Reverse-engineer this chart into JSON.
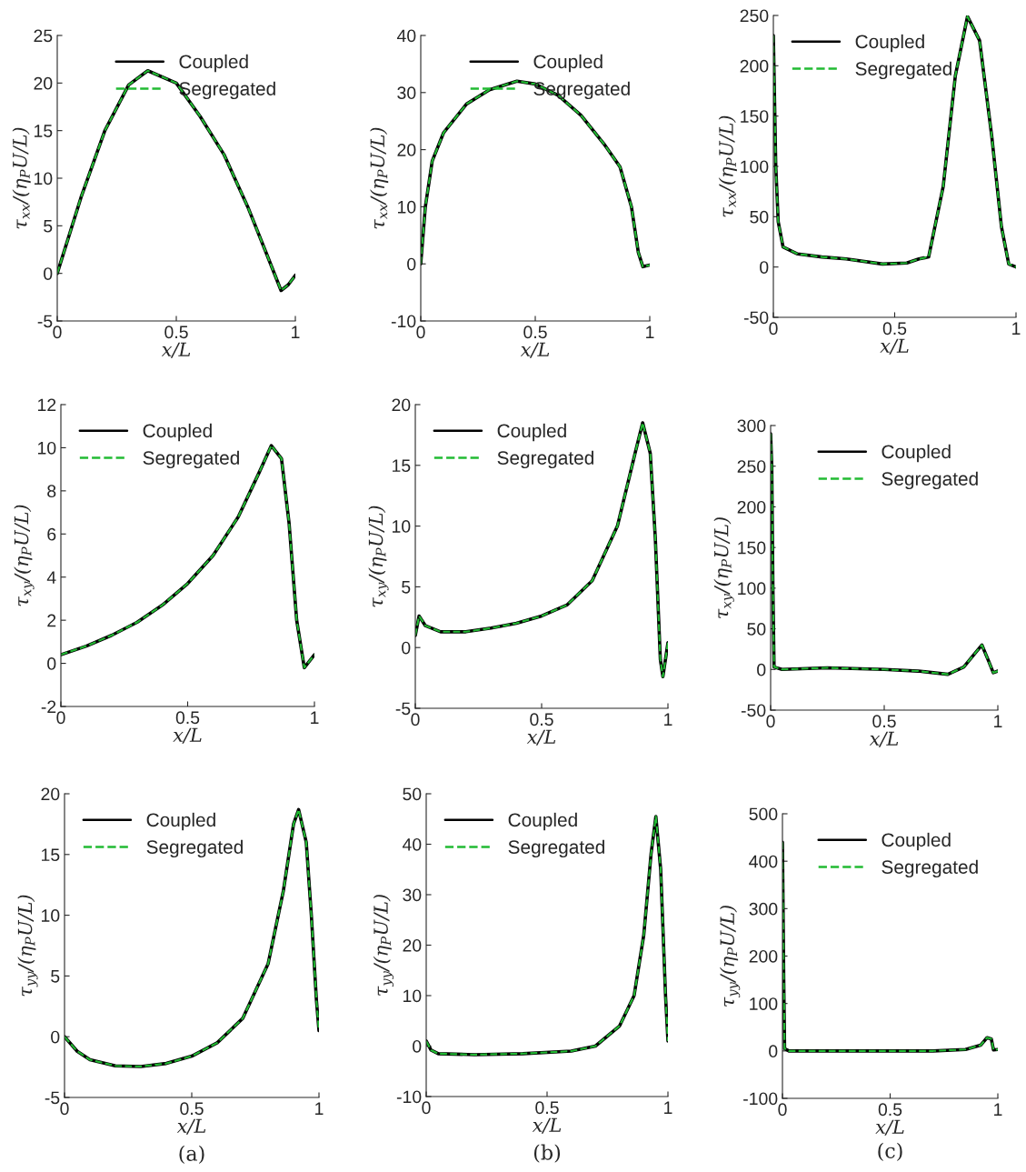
{
  "chart_data": [
    {
      "type": "line",
      "xlabel": "x/L",
      "ylabel": "τ$_{xx}$/(η$_{P}$U/L)",
      "x": [
        0,
        0.1,
        0.2,
        0.3,
        0.38,
        0.5,
        0.6,
        0.7,
        0.8,
        0.88,
        0.94,
        0.97,
        1.0
      ],
      "xlim": [
        0,
        1
      ],
      "xticks": [
        0,
        0.5,
        1
      ],
      "ylim": [
        -5,
        25
      ],
      "yticks": [
        -5,
        0,
        5,
        10,
        15,
        20,
        25
      ],
      "legend": "top right",
      "series": [
        {
          "name": "Coupled",
          "color": "#000000",
          "line_style": "solid",
          "values": [
            0,
            8,
            15,
            19.8,
            21.3,
            20,
            16.5,
            12.5,
            7,
            2,
            -1.8,
            -1.2,
            -0.2
          ]
        },
        {
          "name": "Segregated",
          "color": "#22bb33",
          "line_style": "dashed",
          "values": [
            0,
            8,
            15,
            19.8,
            21.3,
            20,
            16.5,
            12.5,
            7,
            2,
            -1.8,
            -1.2,
            -0.2
          ]
        }
      ]
    },
    {
      "type": "line",
      "xlabel": "x/L",
      "ylabel": "τ$_{xx}$/(η$_{P}$U/L)",
      "x": [
        0,
        0.02,
        0.05,
        0.1,
        0.2,
        0.3,
        0.42,
        0.5,
        0.6,
        0.7,
        0.8,
        0.87,
        0.92,
        0.95,
        0.97,
        1.0
      ],
      "xlim": [
        0,
        1
      ],
      "xticks": [
        0,
        0.5,
        1
      ],
      "ylim": [
        -10,
        40
      ],
      "yticks": [
        -10,
        0,
        10,
        20,
        30,
        40
      ],
      "legend": "top right",
      "series": [
        {
          "name": "Coupled",
          "color": "#000000",
          "line_style": "solid",
          "values": [
            0,
            10,
            18,
            23,
            28,
            30.5,
            32,
            31.5,
            29.5,
            26,
            21,
            17,
            10,
            2,
            -0.5,
            -0.2
          ]
        },
        {
          "name": "Segregated",
          "color": "#22bb33",
          "line_style": "dashed",
          "values": [
            0,
            10,
            18,
            23,
            28,
            30.5,
            32,
            31.5,
            29.5,
            26,
            21,
            17,
            10,
            2,
            -0.5,
            -0.2
          ]
        }
      ]
    },
    {
      "type": "line",
      "xlabel": "x/L",
      "ylabel": "τ$_{xx}$/(η$_{P}$U/L)",
      "x": [
        0,
        0.01,
        0.02,
        0.04,
        0.1,
        0.2,
        0.3,
        0.45,
        0.55,
        0.6,
        0.64,
        0.7,
        0.75,
        0.8,
        0.85,
        0.9,
        0.94,
        0.97,
        1.0
      ],
      "xlim": [
        0,
        1
      ],
      "xticks": [
        0,
        0.5,
        1
      ],
      "ylim": [
        -50,
        250
      ],
      "yticks": [
        -50,
        0,
        50,
        100,
        150,
        200,
        250
      ],
      "legend": "top left",
      "series": [
        {
          "name": "Coupled",
          "color": "#000000",
          "line_style": "solid",
          "values": [
            230,
            100,
            45,
            20,
            13,
            10,
            8,
            3,
            4,
            8,
            10,
            80,
            190,
            249,
            225,
            130,
            40,
            3,
            0
          ]
        },
        {
          "name": "Segregated",
          "color": "#22bb33",
          "line_style": "dashed",
          "values": [
            230,
            100,
            45,
            20,
            13,
            10,
            8,
            3,
            4,
            8,
            10,
            80,
            190,
            249,
            225,
            130,
            40,
            3,
            0
          ]
        }
      ]
    },
    {
      "type": "line",
      "xlabel": "x/L",
      "ylabel": "τ$_{xy}$/(η$_{P}$U/L)",
      "x": [
        0,
        0.1,
        0.2,
        0.3,
        0.4,
        0.5,
        0.6,
        0.7,
        0.78,
        0.83,
        0.87,
        0.9,
        0.93,
        0.96,
        1.0
      ],
      "xlim": [
        0,
        1
      ],
      "xticks": [
        0,
        0.5,
        1
      ],
      "ylim": [
        -2,
        12
      ],
      "yticks": [
        -2,
        0,
        2,
        4,
        6,
        8,
        10,
        12
      ],
      "legend": "top left",
      "series": [
        {
          "name": "Coupled",
          "color": "#000000",
          "line_style": "solid",
          "values": [
            0.4,
            0.8,
            1.3,
            1.9,
            2.7,
            3.7,
            5.0,
            6.8,
            8.8,
            10.1,
            9.5,
            6.5,
            2,
            -0.2,
            0.4
          ]
        },
        {
          "name": "Segregated",
          "color": "#22bb33",
          "line_style": "dashed",
          "values": [
            0.4,
            0.8,
            1.3,
            1.9,
            2.7,
            3.7,
            5.0,
            6.8,
            8.8,
            10.1,
            9.5,
            6.5,
            2,
            -0.2,
            0.4
          ]
        }
      ]
    },
    {
      "type": "line",
      "xlabel": "x/L",
      "ylabel": "τ$_{xy}$/(η$_{P}$U/L)",
      "x": [
        0,
        0.015,
        0.04,
        0.1,
        0.2,
        0.3,
        0.4,
        0.5,
        0.6,
        0.7,
        0.8,
        0.87,
        0.9,
        0.93,
        0.95,
        0.97,
        0.98,
        1.0
      ],
      "xlim": [
        0,
        1
      ],
      "xticks": [
        0,
        0.5,
        1
      ],
      "ylim": [
        -5,
        20
      ],
      "yticks": [
        -5,
        0,
        5,
        10,
        15,
        20
      ],
      "legend": "top left",
      "series": [
        {
          "name": "Coupled",
          "color": "#000000",
          "line_style": "solid",
          "values": [
            1,
            2.6,
            1.8,
            1.3,
            1.3,
            1.6,
            2.0,
            2.6,
            3.5,
            5.5,
            10,
            16,
            18.5,
            16,
            9,
            -1,
            -2.4,
            0.4
          ]
        },
        {
          "name": "Segregated",
          "color": "#22bb33",
          "line_style": "dashed",
          "values": [
            1,
            2.6,
            1.8,
            1.3,
            1.3,
            1.6,
            2.0,
            2.6,
            3.5,
            5.5,
            10,
            16,
            18.5,
            16,
            9,
            -1,
            -2.4,
            0.4
          ]
        }
      ]
    },
    {
      "type": "line",
      "xlabel": "x/L",
      "ylabel": "τ$_{xy}$/(η$_{P}$U/L)",
      "x": [
        0,
        0.005,
        0.01,
        0.015,
        0.05,
        0.25,
        0.5,
        0.65,
        0.78,
        0.85,
        0.9,
        0.93,
        0.96,
        0.98,
        1.0
      ],
      "xlim": [
        0,
        1
      ],
      "xticks": [
        0,
        0.5,
        1
      ],
      "ylim": [
        -50,
        300
      ],
      "yticks": [
        -50,
        0,
        50,
        100,
        150,
        200,
        250,
        300
      ],
      "legend": "top right",
      "series": [
        {
          "name": "Coupled",
          "color": "#000000",
          "line_style": "solid",
          "values": [
            290,
            250,
            100,
            3,
            0,
            2,
            0,
            -2,
            -6,
            3,
            20,
            30,
            10,
            -4,
            -2
          ]
        },
        {
          "name": "Segregated",
          "color": "#22bb33",
          "line_style": "dashed",
          "values": [
            290,
            250,
            100,
            3,
            0,
            2,
            0,
            -2,
            -6,
            3,
            20,
            30,
            10,
            -4,
            -2
          ]
        }
      ]
    },
    {
      "type": "line",
      "xlabel": "x/L",
      "ylabel": "τ$_{yy}$/(η$_{P}$U/L)",
      "annotations": [
        "(a)"
      ],
      "x": [
        0,
        0.05,
        0.1,
        0.2,
        0.3,
        0.4,
        0.5,
        0.6,
        0.7,
        0.8,
        0.86,
        0.9,
        0.92,
        0.95,
        0.97,
        0.99,
        1.0
      ],
      "xlim": [
        0,
        1
      ],
      "xticks": [
        0,
        0.5,
        1
      ],
      "ylim": [
        -5,
        20
      ],
      "yticks": [
        -5,
        0,
        5,
        10,
        15,
        20
      ],
      "legend": "top left",
      "series": [
        {
          "name": "Coupled",
          "color": "#000000",
          "line_style": "solid",
          "values": [
            0,
            -1.2,
            -1.9,
            -2.4,
            -2.45,
            -2.2,
            -1.6,
            -0.5,
            1.5,
            6,
            12,
            17.5,
            18.7,
            16,
            10,
            3,
            0.5
          ]
        },
        {
          "name": "Segregated",
          "color": "#22bb33",
          "line_style": "dashed",
          "values": [
            0,
            -1.2,
            -1.9,
            -2.4,
            -2.45,
            -2.2,
            -1.6,
            -0.5,
            1.5,
            6,
            12,
            17.5,
            18.7,
            16,
            10,
            3,
            0.5
          ]
        }
      ]
    },
    {
      "type": "line",
      "xlabel": "x/L",
      "ylabel": "τ$_{yy}$/(η$_{P}$U/L)",
      "annotations": [
        "(b)"
      ],
      "x": [
        0,
        0.02,
        0.05,
        0.2,
        0.4,
        0.6,
        0.7,
        0.8,
        0.86,
        0.9,
        0.93,
        0.95,
        0.97,
        0.99,
        1.0
      ],
      "xlim": [
        0,
        1
      ],
      "xticks": [
        0,
        0.5,
        1
      ],
      "ylim": [
        -10,
        50
      ],
      "yticks": [
        -10,
        0,
        10,
        20,
        30,
        40,
        50
      ],
      "legend": "top left",
      "series": [
        {
          "name": "Coupled",
          "color": "#000000",
          "line_style": "solid",
          "values": [
            1,
            -0.8,
            -1.5,
            -1.7,
            -1.5,
            -1,
            0,
            4,
            10,
            22,
            38,
            45.5,
            35,
            10,
            1
          ]
        },
        {
          "name": "Segregated",
          "color": "#22bb33",
          "line_style": "dashed",
          "values": [
            1,
            -0.8,
            -1.5,
            -1.7,
            -1.5,
            -1,
            0,
            4,
            10,
            22,
            38,
            45.5,
            35,
            10,
            1
          ]
        }
      ]
    },
    {
      "type": "line",
      "xlabel": "x/L",
      "ylabel": "τ$_{yy}$/(η$_{P}$U/L)",
      "annotations": [
        "(c)"
      ],
      "x": [
        0,
        0.003,
        0.006,
        0.01,
        0.03,
        0.4,
        0.7,
        0.85,
        0.92,
        0.95,
        0.97,
        0.98,
        1.0
      ],
      "xlim": [
        0,
        1
      ],
      "xticks": [
        0,
        0.5,
        1
      ],
      "ylim": [
        -100,
        500
      ],
      "yticks": [
        -100,
        0,
        100,
        200,
        300,
        400,
        500
      ],
      "legend": "top right",
      "series": [
        {
          "name": "Coupled",
          "color": "#000000",
          "line_style": "solid",
          "values": [
            440,
            300,
            150,
            5,
            0,
            0,
            0,
            3,
            12,
            28,
            25,
            2,
            3
          ]
        },
        {
          "name": "Segregated",
          "color": "#22bb33",
          "line_style": "dashed",
          "values": [
            440,
            300,
            150,
            5,
            0,
            0,
            0,
            3,
            12,
            28,
            25,
            2,
            3
          ]
        }
      ]
    }
  ]
}
